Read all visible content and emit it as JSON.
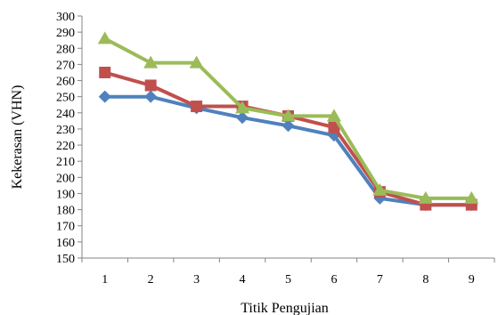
{
  "chart_data": {
    "type": "line",
    "title": "",
    "xlabel": "Titik Pengujian",
    "ylabel": "Kekerasan (VHN)",
    "categories": [
      "1",
      "2",
      "3",
      "4",
      "5",
      "6",
      "7",
      "8",
      "9"
    ],
    "ylim": [
      150,
      300
    ],
    "ytick_step": 10,
    "grid": false,
    "legend": "none",
    "series": [
      {
        "color": "#4f81bd",
        "marker": "diamond",
        "values": [
          250,
          250,
          243,
          237,
          232,
          226,
          187,
          183,
          183
        ]
      },
      {
        "color": "#c0504d",
        "marker": "square",
        "values": [
          265,
          257,
          244,
          244,
          238,
          231,
          191,
          183,
          183
        ]
      },
      {
        "color": "#9bbb59",
        "marker": "triangle",
        "values": [
          286,
          271,
          271,
          243,
          238,
          238,
          192,
          187,
          187
        ]
      }
    ]
  }
}
